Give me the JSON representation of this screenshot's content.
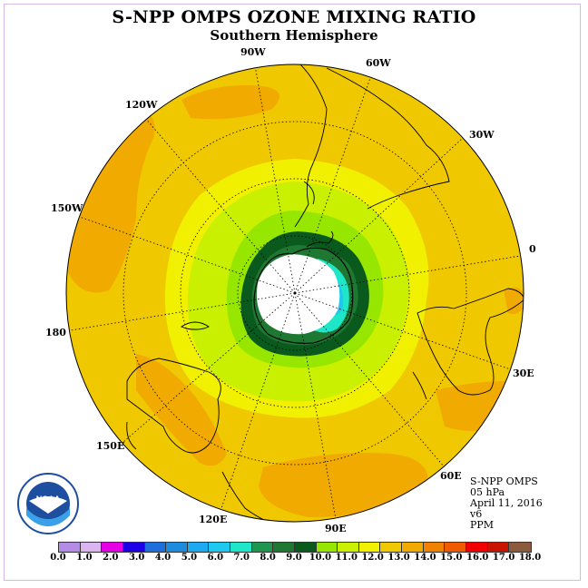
{
  "title": "S-NPP OMPS OZONE MIXING RATIO",
  "subtitle": "Southern Hemisphere",
  "longitude_labels": [
    {
      "key": "90W",
      "text": "90W"
    },
    {
      "key": "60W",
      "text": "60W"
    },
    {
      "key": "30W",
      "text": "30W"
    },
    {
      "key": "0",
      "text": "0"
    },
    {
      "key": "30E",
      "text": "30E"
    },
    {
      "key": "60E",
      "text": "60E"
    },
    {
      "key": "90E",
      "text": "90E"
    },
    {
      "key": "120E",
      "text": "120E"
    },
    {
      "key": "150E",
      "text": "150E"
    },
    {
      "key": "180",
      "text": "180"
    },
    {
      "key": "150W",
      "text": "150W"
    },
    {
      "key": "120W",
      "text": "120W"
    }
  ],
  "info": {
    "instrument": "S-NPP OMPS",
    "level": "05 hPa",
    "date": "April 11, 2016",
    "version": "v6",
    "units": "PPM"
  },
  "logo": {
    "text": "NOAA",
    "icon": "noaa-logo-icon"
  },
  "colorbar": {
    "colors": [
      "#b48ce6",
      "#dcb4f0",
      "#e600e6",
      "#1e00e6",
      "#1e6edc",
      "#1e8cdc",
      "#1eaaf0",
      "#1ec8f0",
      "#1ee6c8",
      "#1e9650",
      "#1e7832",
      "#0a5a1e",
      "#96e600",
      "#c8f000",
      "#f0f000",
      "#f0c800",
      "#f0aa00",
      "#f08200",
      "#f05a00",
      "#f00000",
      "#c81400",
      "#8c5a3c"
    ],
    "labels": [
      "0.0",
      "1.0",
      "2.0",
      "3.0",
      "4.0",
      "5.0",
      "6.0",
      "7.0",
      "8.0",
      "9.0",
      "10.0",
      "11.0",
      "12.0",
      "13.0",
      "14.0",
      "15.0",
      "16.0",
      "17.0",
      "18.0"
    ]
  },
  "contour_levels_ppm": [
    8.0,
    9.0,
    10.0,
    11.0,
    12.0,
    13.0,
    14.0
  ]
}
